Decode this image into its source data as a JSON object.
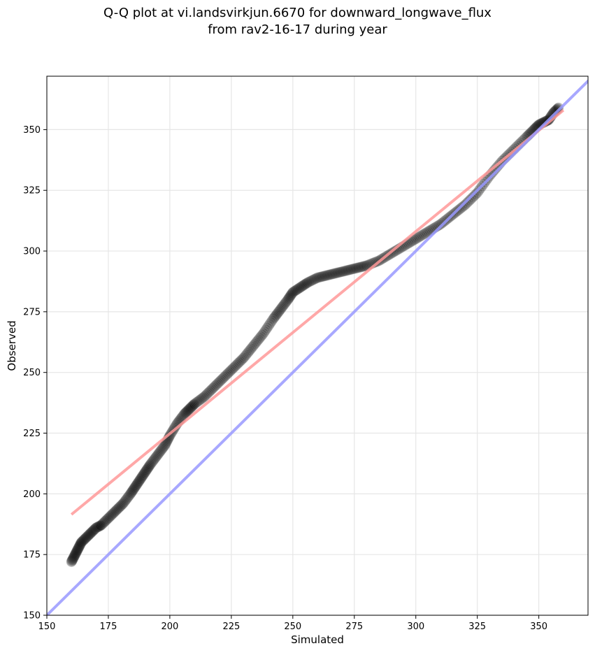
{
  "chart_data": {
    "type": "scatter",
    "title_line1": "Q-Q plot at vi.landsvirkjun.6670 for downward_longwave_flux",
    "title_line2": "from rav2-16-17 during year",
    "xlabel": "Simulated",
    "ylabel": "Observed",
    "xlim": [
      150,
      370
    ],
    "ylim": [
      150,
      372
    ],
    "xticks": [
      150,
      175,
      200,
      225,
      250,
      275,
      300,
      325,
      350
    ],
    "yticks": [
      150,
      175,
      200,
      225,
      250,
      275,
      300,
      325,
      350
    ],
    "grid": true,
    "quantiles": {
      "x": [
        160,
        161,
        162,
        163,
        164,
        166,
        168,
        170,
        172,
        175,
        178,
        181,
        184,
        186,
        188,
        190,
        192,
        195,
        198,
        200,
        203,
        206,
        208,
        210,
        214,
        218,
        222,
        226,
        230,
        234,
        238,
        242,
        245,
        248,
        250,
        253,
        256,
        260,
        264,
        268,
        272,
        276,
        280,
        285,
        290,
        295,
        300,
        305,
        310,
        315,
        320,
        325,
        330,
        335,
        340,
        345,
        348,
        350,
        352,
        354,
        356,
        358
      ],
      "y": [
        172,
        174,
        176,
        178,
        180,
        182,
        184,
        186,
        187,
        190,
        193,
        196,
        200,
        203,
        206,
        209,
        212,
        216,
        220,
        224,
        229,
        233,
        235,
        237,
        240,
        244,
        248,
        252,
        256,
        261,
        266,
        272,
        276,
        280,
        283,
        285,
        287,
        289,
        290,
        291,
        292,
        293,
        294,
        296,
        299,
        302,
        305,
        308,
        311,
        315,
        319,
        324,
        331,
        337,
        342,
        347,
        350,
        352,
        353,
        354,
        357,
        359
      ],
      "color": "#000000"
    },
    "fit_line": {
      "x": [
        160,
        360
      ],
      "y": [
        191.5,
        358
      ],
      "color": "#ff9999"
    },
    "identity_line": {
      "x": [
        150,
        372
      ],
      "y": [
        150,
        372
      ],
      "color": "#9999ff"
    }
  }
}
